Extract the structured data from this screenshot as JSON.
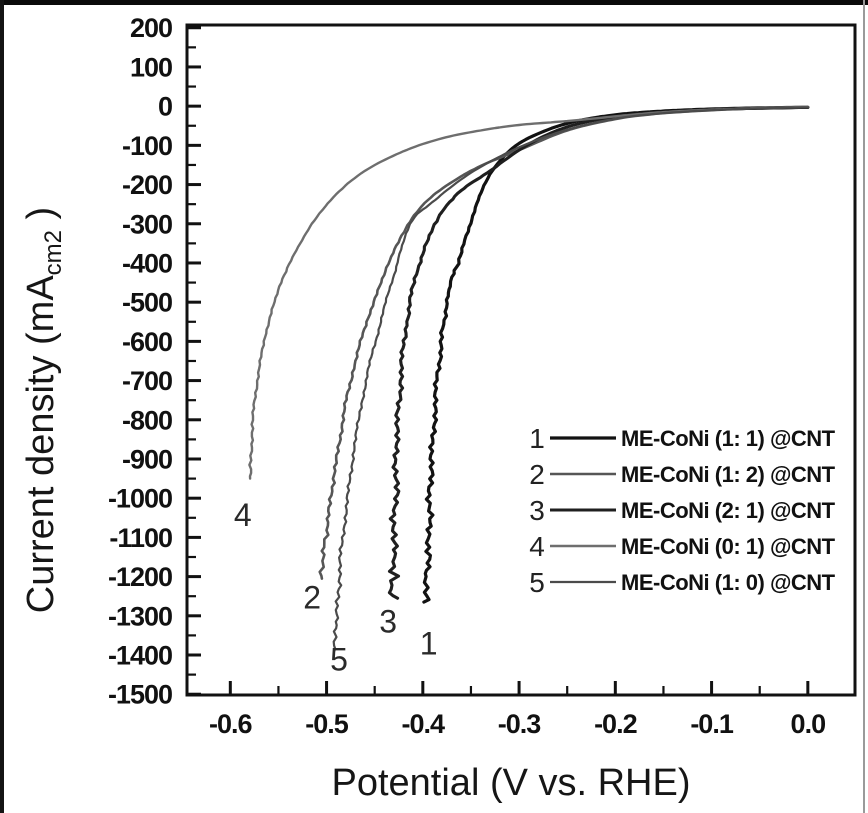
{
  "figure": {
    "background": "#ffffff",
    "frame_color": "#111111",
    "scan_border_color": "#0a0a0a"
  },
  "chart_data": {
    "type": "line",
    "title": "",
    "xlabel": "Potential (V vs. RHE)",
    "ylabel_prefix": "Current density (mA",
    "ylabel_sub": "cm2",
    "ylabel_suffix": " )",
    "xlim": [
      -0.645,
      0.049
    ],
    "ylim": [
      -1502,
      207
    ],
    "grid": false,
    "x_ticks": {
      "major": [
        -0.6,
        -0.5,
        -0.4,
        -0.3,
        -0.2,
        -0.1,
        0.0
      ],
      "labels": [
        "-0.6",
        "-0.5",
        "-0.4",
        "-0.3",
        "-0.2",
        "-0.1",
        "0.0"
      ],
      "minor": [
        -0.55,
        -0.45,
        -0.35,
        -0.25,
        -0.15,
        -0.05
      ]
    },
    "y_ticks": {
      "major": [
        200,
        100,
        0,
        -100,
        -200,
        -300,
        -400,
        -500,
        -600,
        -700,
        -800,
        -900,
        -1000,
        -1100,
        -1200,
        -1300,
        -1400,
        -1500
      ],
      "labels": [
        "200",
        "100",
        "0",
        "-100",
        "-200",
        "-300",
        "-400",
        "-500",
        "-600",
        "-700",
        "-800",
        "-900",
        "-1000",
        "-1100",
        "-1200",
        "-1300",
        "-1400",
        "-1500"
      ],
      "minor": [
        150,
        50,
        -50,
        -150,
        -250,
        -350,
        -450,
        -550,
        -650,
        -750,
        -850,
        -950,
        -1050,
        -1150,
        -1250,
        -1350,
        -1450
      ]
    },
    "legend": {
      "position": "lower right"
    },
    "series": [
      {
        "id": "1",
        "name": "ME-CoNi (1: 1) @CNT",
        "color": "#121212",
        "points": [
          [
            0,
            -3
          ],
          [
            -0.04,
            -4
          ],
          [
            -0.08,
            -6
          ],
          [
            -0.12,
            -9
          ],
          [
            -0.16,
            -14
          ],
          [
            -0.2,
            -22
          ],
          [
            -0.24,
            -38
          ],
          [
            -0.27,
            -60
          ],
          [
            -0.3,
            -95
          ],
          [
            -0.32,
            -140
          ],
          [
            -0.335,
            -195
          ],
          [
            -0.348,
            -280
          ],
          [
            -0.362,
            -390
          ],
          [
            -0.372,
            -460
          ],
          [
            -0.381,
            -600
          ],
          [
            -0.387,
            -760
          ],
          [
            -0.391,
            -920
          ],
          [
            -0.394,
            -1080
          ],
          [
            -0.396,
            -1200
          ],
          [
            -0.397,
            -1265
          ]
        ],
        "annotation": {
          "text": "1",
          "V": -0.394,
          "I": -1370
        }
      },
      {
        "id": "2",
        "name": "ME-CoNi (1: 2) @CNT",
        "color": "#565656",
        "points": [
          [
            0,
            -3
          ],
          [
            -0.04,
            -5
          ],
          [
            -0.08,
            -8
          ],
          [
            -0.12,
            -13
          ],
          [
            -0.16,
            -20
          ],
          [
            -0.2,
            -33
          ],
          [
            -0.25,
            -62
          ],
          [
            -0.3,
            -112
          ],
          [
            -0.35,
            -165
          ],
          [
            -0.395,
            -240
          ],
          [
            -0.422,
            -330
          ],
          [
            -0.442,
            -440
          ],
          [
            -0.458,
            -550
          ],
          [
            -0.472,
            -670
          ],
          [
            -0.483,
            -800
          ],
          [
            -0.492,
            -940
          ],
          [
            -0.499,
            -1070
          ],
          [
            -0.504,
            -1160
          ],
          [
            -0.507,
            -1205
          ]
        ],
        "annotation": {
          "text": "2",
          "V": -0.515,
          "I": -1253
        }
      },
      {
        "id": "3",
        "name": "ME-CoNi (2: 1) @CNT",
        "color": "#1f1f1f",
        "points": [
          [
            0,
            -3
          ],
          [
            -0.04,
            -5
          ],
          [
            -0.08,
            -7
          ],
          [
            -0.12,
            -11
          ],
          [
            -0.16,
            -17
          ],
          [
            -0.2,
            -27
          ],
          [
            -0.24,
            -46
          ],
          [
            -0.27,
            -72
          ],
          [
            -0.3,
            -112
          ],
          [
            -0.33,
            -165
          ],
          [
            -0.36,
            -215
          ],
          [
            -0.38,
            -270
          ],
          [
            -0.395,
            -340
          ],
          [
            -0.408,
            -440
          ],
          [
            -0.417,
            -560
          ],
          [
            -0.423,
            -700
          ],
          [
            -0.427,
            -860
          ],
          [
            -0.429,
            -1020
          ],
          [
            -0.4305,
            -1150
          ],
          [
            -0.431,
            -1255
          ]
        ],
        "annotation": {
          "text": "3",
          "V": -0.436,
          "I": -1314
        }
      },
      {
        "id": "4",
        "name": "ME-CoNi (0: 1) @CNT",
        "color": "#6e6e6e",
        "points": [
          [
            0,
            -2
          ],
          [
            -0.04,
            -4
          ],
          [
            -0.08,
            -7
          ],
          [
            -0.12,
            -11
          ],
          [
            -0.16,
            -17
          ],
          [
            -0.2,
            -26
          ],
          [
            -0.25,
            -38
          ],
          [
            -0.3,
            -48
          ],
          [
            -0.34,
            -62
          ],
          [
            -0.38,
            -82
          ],
          [
            -0.42,
            -115
          ],
          [
            -0.46,
            -165
          ],
          [
            -0.49,
            -225
          ],
          [
            -0.515,
            -300
          ],
          [
            -0.535,
            -385
          ],
          [
            -0.55,
            -470
          ],
          [
            -0.562,
            -570
          ],
          [
            -0.571,
            -680
          ],
          [
            -0.576,
            -790
          ],
          [
            -0.5785,
            -880
          ],
          [
            -0.579,
            -950
          ]
        ],
        "annotation": {
          "text": "4",
          "V": -0.587,
          "I": -1043
        }
      },
      {
        "id": "5",
        "name": "ME-CoNi (1: 0) @CNT",
        "color": "#4b4b4b",
        "points": [
          [
            0,
            -3
          ],
          [
            -0.04,
            -5
          ],
          [
            -0.08,
            -8
          ],
          [
            -0.12,
            -13
          ],
          [
            -0.16,
            -20
          ],
          [
            -0.2,
            -32
          ],
          [
            -0.25,
            -60
          ],
          [
            -0.3,
            -105
          ],
          [
            -0.35,
            -170
          ],
          [
            -0.39,
            -245
          ],
          [
            -0.413,
            -300
          ],
          [
            -0.43,
            -430
          ],
          [
            -0.445,
            -560
          ],
          [
            -0.458,
            -690
          ],
          [
            -0.468,
            -820
          ],
          [
            -0.476,
            -960
          ],
          [
            -0.483,
            -1100
          ],
          [
            -0.488,
            -1240
          ],
          [
            -0.491,
            -1340
          ],
          [
            -0.492,
            -1390
          ]
        ],
        "annotation": {
          "text": "5",
          "V": -0.487,
          "I": -1411
        }
      }
    ]
  }
}
